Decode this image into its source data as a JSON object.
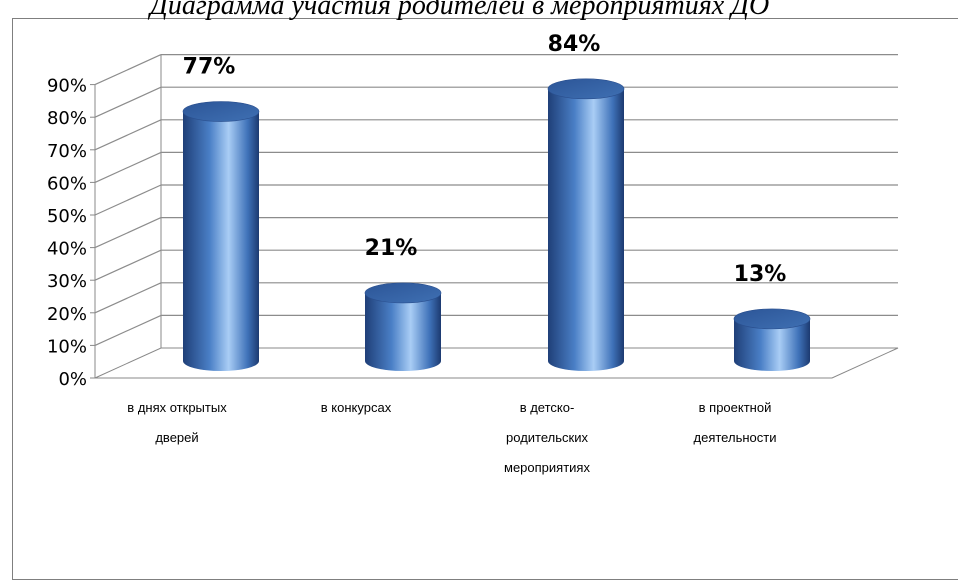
{
  "chart_data": {
    "type": "bar",
    "title": "Диаграмма участия родителей в мероприятиях ДО",
    "categories": [
      [
        "в днях открытых",
        "дверей"
      ],
      [
        "в конкурсах"
      ],
      [
        "в детско-",
        "родительских",
        "мероприятиях"
      ],
      [
        "в проектной",
        "деятельности"
      ]
    ],
    "values": [
      77,
      21,
      84,
      13
    ],
    "data_labels": [
      "77%",
      "21%",
      "84%",
      "13%"
    ],
    "y_ticks": [
      "0%",
      "10%",
      "20%",
      "30%",
      "40%",
      "50%",
      "60%",
      "70%",
      "80%",
      "90%"
    ],
    "ylim": [
      0,
      90
    ],
    "grid": true,
    "legend": "none",
    "bar_color": "#3b6fb6"
  }
}
